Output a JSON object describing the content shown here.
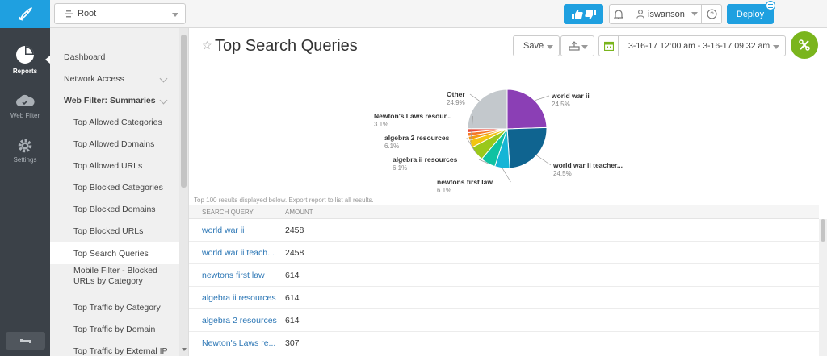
{
  "app": {
    "rail": [
      {
        "name": "reports",
        "label": "Reports",
        "icon": "pie-chart-icon",
        "active": true
      },
      {
        "name": "web-filter",
        "label": "Web Filter",
        "icon": "cloud-icon",
        "active": false
      },
      {
        "name": "settings",
        "label": "Settings",
        "icon": "gear-icon",
        "active": false
      }
    ]
  },
  "topbar": {
    "root_select": "Root",
    "user": "iswanson",
    "deploy_label": "Deploy"
  },
  "menu": {
    "items": [
      {
        "label": "Dashboard",
        "level": 1
      },
      {
        "label": "Network Access",
        "level": 1,
        "chevron": true
      },
      {
        "label": "Web Filter: Summaries",
        "level": 1,
        "chevron": true,
        "bold": true
      },
      {
        "label": "Top Allowed Categories",
        "level": 2
      },
      {
        "label": "Top Allowed Domains",
        "level": 2
      },
      {
        "label": "Top Allowed URLs",
        "level": 2
      },
      {
        "label": "Top Blocked Categories",
        "level": 2
      },
      {
        "label": "Top Blocked Domains",
        "level": 2
      },
      {
        "label": "Top Blocked URLs",
        "level": 2
      },
      {
        "label": "Top Search Queries",
        "level": 2,
        "selected": true
      },
      {
        "label": "Mobile Filter - Blocked URLs by Category",
        "level": 2
      },
      {
        "label": "Top Traffic by Category",
        "level": 2
      },
      {
        "label": "Top Traffic by Domain",
        "level": 2
      },
      {
        "label": "Top Traffic by External IP",
        "level": 2
      }
    ]
  },
  "header": {
    "title": "Top Search Queries",
    "save_label": "Save",
    "date_range": "3-16-17 12:00 am - 3-16-17 09:32 am"
  },
  "chart_data": {
    "type": "pie",
    "slices": [
      {
        "label": "world war ii",
        "pct_label": "24.5%",
        "value": 24.5,
        "color": "#8b3fb5"
      },
      {
        "label": "world war ii teacher...",
        "pct_label": "24.5%",
        "value": 24.5,
        "color": "#0f6490"
      },
      {
        "label": "newtons first law",
        "pct_label": "6.1%",
        "value": 6.1,
        "color": "#15b5d6"
      },
      {
        "label": "algebra ii resources",
        "pct_label": "6.1%",
        "value": 6.1,
        "color": "#0fc2a2"
      },
      {
        "label": "algebra 2 resources",
        "pct_label": "6.1%",
        "value": 6.1,
        "color": "#9ac81b"
      },
      {
        "label": "Newton's Laws resour...",
        "pct_label": "3.1%",
        "value": 3.1,
        "color": "#f2c511"
      },
      {
        "label": "",
        "pct_label": "",
        "value": 1.6,
        "color": "#f39c12"
      },
      {
        "label": "",
        "pct_label": "",
        "value": 1.6,
        "color": "#f5782a"
      },
      {
        "label": "",
        "pct_label": "",
        "value": 1.6,
        "color": "#e74c3c"
      },
      {
        "label": "Other",
        "pct_label": "24.9%",
        "value": 24.9,
        "color": "#c3c8cc"
      }
    ]
  },
  "note": "Top 100 results displayed below. Export report to list all results.",
  "table": {
    "columns": [
      "SEARCH QUERY",
      "AMOUNT"
    ],
    "rows": [
      {
        "query": "world war ii",
        "amount": "2458"
      },
      {
        "query": "world war ii teach...",
        "amount": "2458"
      },
      {
        "query": "newtons first law",
        "amount": "614"
      },
      {
        "query": "algebra ii resources",
        "amount": "614"
      },
      {
        "query": "algebra 2 resources",
        "amount": "614"
      },
      {
        "query": "Newton's Laws re...",
        "amount": "307"
      }
    ]
  }
}
